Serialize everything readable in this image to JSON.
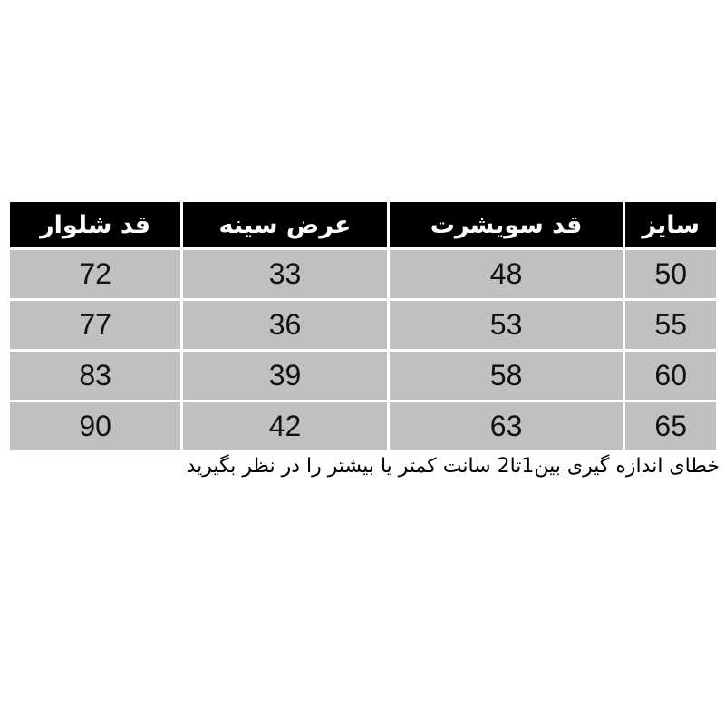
{
  "table": {
    "headers": [
      "سایز",
      "قد سویشرت",
      "عرض سینه",
      "قد شلوار"
    ],
    "rows": [
      [
        "50",
        "48",
        "33",
        "72"
      ],
      [
        "55",
        "53",
        "36",
        "77"
      ],
      [
        "60",
        "58",
        "39",
        "83"
      ],
      [
        "65",
        "63",
        "42",
        "90"
      ]
    ]
  },
  "note": "خطای اندازه گیری بین1تا2 سانت کمتر یا بیشتر را در نظر بگیرید",
  "colors": {
    "header_bg": "#000000",
    "row_bg": "#c0c0c0"
  }
}
